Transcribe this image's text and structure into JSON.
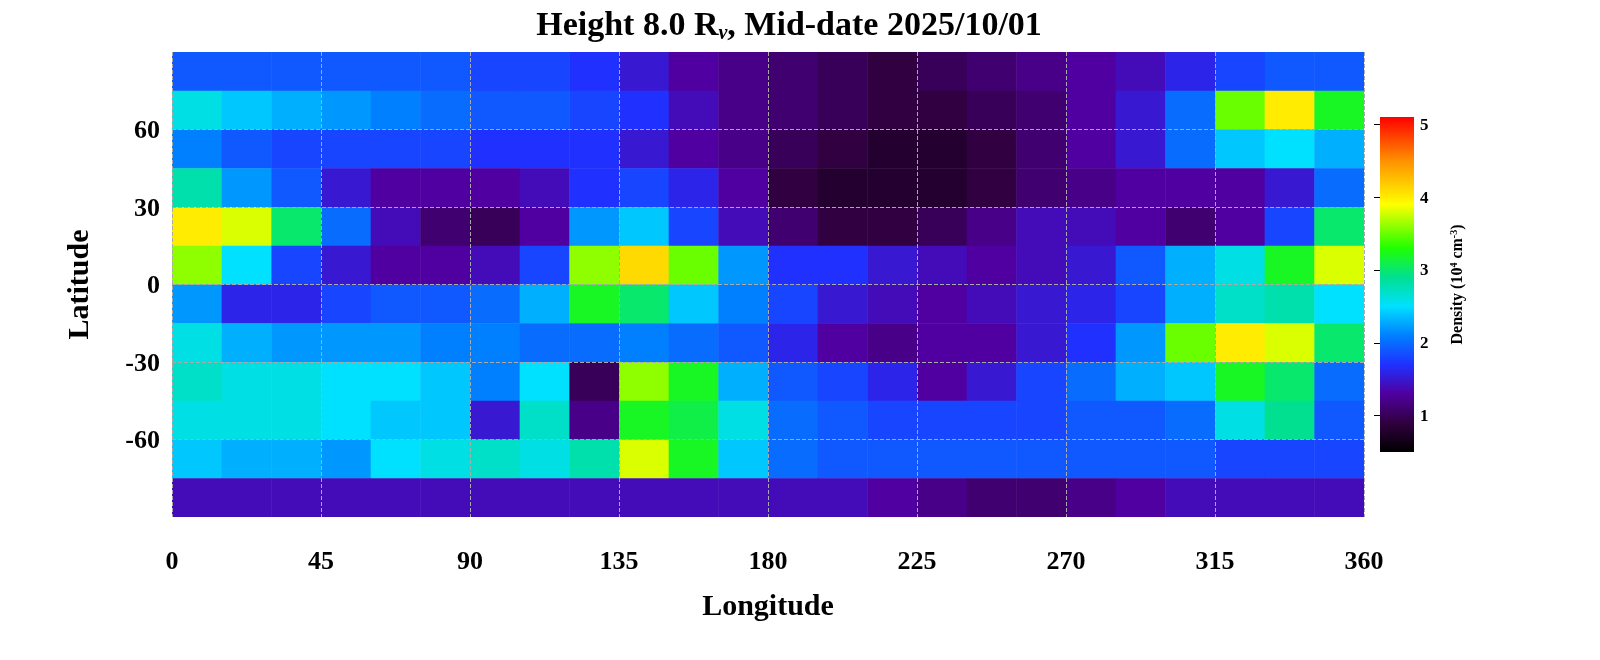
{
  "chart_data": {
    "type": "heatmap",
    "title": "Height 8.0 R$_{ν}$, Mid-date 2025/10/01",
    "xlabel": "Longitude",
    "ylabel": "Latitude",
    "clabel": "Density (10$^{4}$ cm$^{-3}$)",
    "x": [
      7.5,
      22.5,
      37.5,
      52.5,
      67.5,
      82.5,
      97.5,
      112.5,
      127.5,
      142.5,
      157.5,
      172.5,
      187.5,
      202.5,
      217.5,
      232.5,
      247.5,
      262.5,
      277.5,
      292.5,
      307.5,
      322.5,
      337.5,
      352.5
    ],
    "y": [
      82.5,
      67.5,
      52.5,
      37.5,
      22.5,
      7.5,
      -7.5,
      -22.5,
      -37.5,
      -52.5,
      -67.5,
      -82.5
    ],
    "cells": [
      [
        1.9,
        1.9,
        1.9,
        1.9,
        1.9,
        1.9,
        1.8,
        1.8,
        1.7,
        1.5,
        1.3,
        1.2,
        1.1,
        1.0,
        0.9,
        1.0,
        1.1,
        1.2,
        1.3,
        1.4,
        1.6,
        1.8,
        1.9,
        1.9
      ],
      [
        2.6,
        2.4,
        2.3,
        2.2,
        2.1,
        2.0,
        1.9,
        1.9,
        1.8,
        1.7,
        1.4,
        1.2,
        1.1,
        1.0,
        0.9,
        0.9,
        1.0,
        1.1,
        1.3,
        1.5,
        2.0,
        3.5,
        4.0,
        3.2
      ],
      [
        2.1,
        1.9,
        1.8,
        1.8,
        1.8,
        1.8,
        1.7,
        1.7,
        1.7,
        1.5,
        1.3,
        1.2,
        1.0,
        0.9,
        0.8,
        0.8,
        0.9,
        1.1,
        1.3,
        1.5,
        2.0,
        2.4,
        2.5,
        2.3
      ],
      [
        2.8,
        2.2,
        1.9,
        1.5,
        1.3,
        1.3,
        1.3,
        1.4,
        1.7,
        1.8,
        1.6,
        1.3,
        0.9,
        0.8,
        0.8,
        0.8,
        0.9,
        1.1,
        1.2,
        1.3,
        1.3,
        1.3,
        1.5,
        2.0
      ],
      [
        4.0,
        3.8,
        3.0,
        2.0,
        1.4,
        1.1,
        1.0,
        1.3,
        2.2,
        2.4,
        1.8,
        1.4,
        1.1,
        0.9,
        0.9,
        1.0,
        1.2,
        1.4,
        1.4,
        1.3,
        1.1,
        1.3,
        1.8,
        3.0
      ],
      [
        3.6,
        2.5,
        1.8,
        1.5,
        1.3,
        1.3,
        1.4,
        1.8,
        3.6,
        4.1,
        3.5,
        2.2,
        1.7,
        1.7,
        1.5,
        1.4,
        1.3,
        1.4,
        1.5,
        1.9,
        2.3,
        2.6,
        3.2,
        3.8
      ],
      [
        2.2,
        1.6,
        1.6,
        1.8,
        1.9,
        1.9,
        2.0,
        2.3,
        3.2,
        3.0,
        2.4,
        2.1,
        1.8,
        1.5,
        1.4,
        1.3,
        1.4,
        1.5,
        1.6,
        1.8,
        2.3,
        2.7,
        2.8,
        2.5
      ],
      [
        2.6,
        2.3,
        2.2,
        2.2,
        2.2,
        2.1,
        2.1,
        2.0,
        2.0,
        2.1,
        2.0,
        1.9,
        1.6,
        1.3,
        1.2,
        1.3,
        1.3,
        1.5,
        1.7,
        2.2,
        3.5,
        4.0,
        3.8,
        3.0
      ],
      [
        2.7,
        2.6,
        2.6,
        2.5,
        2.5,
        2.4,
        2.1,
        2.5,
        1.0,
        3.6,
        3.2,
        2.3,
        1.9,
        1.8,
        1.6,
        1.3,
        1.5,
        1.8,
        2.0,
        2.3,
        2.4,
        3.2,
        3.0,
        2.0
      ],
      [
        2.6,
        2.6,
        2.6,
        2.5,
        2.4,
        2.4,
        1.5,
        2.7,
        1.2,
        3.2,
        3.1,
        2.6,
        2.0,
        1.9,
        1.8,
        1.8,
        1.8,
        1.8,
        1.9,
        1.9,
        2.0,
        2.6,
        2.9,
        1.9
      ],
      [
        2.4,
        2.3,
        2.3,
        2.2,
        2.5,
        2.6,
        2.7,
        2.6,
        2.8,
        3.8,
        3.2,
        2.4,
        2.0,
        1.9,
        1.9,
        1.9,
        1.9,
        1.9,
        1.9,
        1.9,
        1.9,
        1.8,
        1.8,
        1.8
      ],
      [
        1.4,
        1.4,
        1.4,
        1.4,
        1.4,
        1.4,
        1.4,
        1.4,
        1.4,
        1.4,
        1.4,
        1.4,
        1.4,
        1.4,
        1.3,
        1.2,
        1.1,
        1.1,
        1.2,
        1.3,
        1.4,
        1.4,
        1.4,
        1.4
      ]
    ],
    "xlim": [
      0,
      360
    ],
    "xticks": [
      0,
      45,
      90,
      135,
      180,
      225,
      270,
      315,
      360
    ],
    "ylim": [
      -90,
      90
    ],
    "yticks": [
      -60,
      -30,
      0,
      30,
      60
    ],
    "clim": [
      0.5,
      5.1
    ],
    "cticks": [
      1,
      2,
      3,
      4,
      5
    ],
    "grid": true
  }
}
